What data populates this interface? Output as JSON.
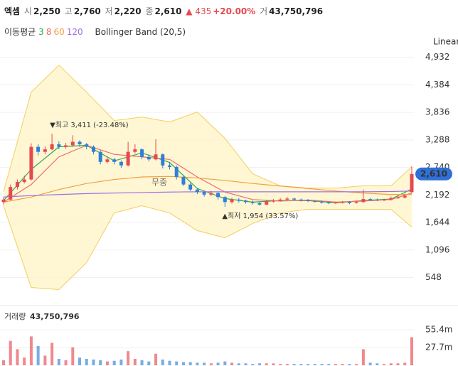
{
  "chart_data": {
    "type": "candlestick",
    "header": {
      "name": "엑셈",
      "open_label": "시",
      "open": "2,250",
      "high_label": "고",
      "high": "2,760",
      "low_label": "저",
      "low": "2,220",
      "close_label": "종",
      "close": "2,610",
      "change": "▲ 435",
      "change_pct": "+20.00%",
      "volume_label": "거",
      "volume": "43,750,796"
    },
    "ma_label": "이동평균",
    "bollinger_label": "Bollinger Band (20,5)",
    "scale_label": "Linear",
    "price_tag": "2,610",
    "watermark": "무중",
    "annotations": [
      "▼최고 3,411 (-23.48%)",
      "▲최저 1,954 (33.57%)"
    ],
    "up_color": "#e8484f",
    "down_color": "#2f7fd6",
    "open": [
      2050,
      2100,
      2350,
      2450,
      2500,
      3150,
      3050,
      3100,
      3200,
      3150,
      3180,
      3250,
      3200,
      3150,
      3050,
      2850,
      2900,
      2850,
      2780,
      3050,
      3100,
      2950,
      2900,
      3000,
      2780,
      2750,
      2550,
      2400,
      2300,
      2250,
      2200,
      2230,
      2150,
      2050,
      2100,
      2080,
      2050,
      2030,
      2000,
      2060,
      2080,
      2100,
      2120,
      2100,
      2090,
      2070,
      2060,
      2040,
      2030,
      2040,
      2050,
      2030,
      2050,
      2110,
      2100,
      2090,
      2100,
      2130,
      2140,
      2250
    ],
    "high": [
      2150,
      2400,
      2500,
      2580,
      3220,
      3200,
      3160,
      3411,
      3260,
      3230,
      3380,
      3280,
      3230,
      3180,
      3080,
      2960,
      2930,
      2880,
      3250,
      3200,
      3120,
      3000,
      3300,
      3020,
      2850,
      2780,
      2580,
      2430,
      2330,
      2280,
      2270,
      2260,
      2170,
      2140,
      2130,
      2100,
      2080,
      2050,
      2090,
      2110,
      2130,
      2150,
      2140,
      2120,
      2110,
      2090,
      2080,
      2060,
      2060,
      2070,
      2070,
      2080,
      2300,
      2130,
      2120,
      2120,
      2160,
      2170,
      2220,
      2760
    ],
    "low": [
      2000,
      2080,
      2300,
      2420,
      2480,
      2980,
      3000,
      3080,
      3100,
      3110,
      3150,
      3150,
      3100,
      3000,
      2800,
      2820,
      2800,
      2730,
      2760,
      3020,
      2900,
      2860,
      2880,
      2720,
      2700,
      2500,
      2370,
      2270,
      2210,
      2160,
      2170,
      2100,
      1954,
      2020,
      2040,
      2020,
      2000,
      1980,
      1990,
      2040,
      2060,
      2080,
      2070,
      2060,
      2050,
      2040,
      2020,
      2010,
      2010,
      2020,
      2010,
      2020,
      2040,
      2070,
      2070,
      2070,
      2080,
      2110,
      2120,
      2220
    ],
    "close": [
      2100,
      2350,
      2450,
      2500,
      3150,
      3050,
      3100,
      3200,
      3150,
      3180,
      3250,
      3200,
      3150,
      3050,
      2850,
      2900,
      2850,
      2780,
      3050,
      3100,
      2950,
      2900,
      3000,
      2780,
      2750,
      2550,
      2400,
      2300,
      2250,
      2200,
      2230,
      2150,
      2050,
      2100,
      2080,
      2050,
      2030,
      2000,
      2060,
      2080,
      2100,
      2120,
      2100,
      2090,
      2070,
      2060,
      2040,
      2030,
      2040,
      2050,
      2030,
      2050,
      2110,
      2100,
      2090,
      2100,
      2130,
      2140,
      2175,
      2610
    ],
    "ylim": [
      60,
      5380
    ],
    "yticks": [
      {
        "value": 4932,
        "label": "4,932"
      },
      {
        "value": 4384,
        "label": "4,384"
      },
      {
        "value": 3836,
        "label": "3,836"
      },
      {
        "value": 3288,
        "label": "3,288"
      },
      {
        "value": 2740,
        "label": "2,740"
      },
      {
        "value": 2192,
        "label": "2,192"
      },
      {
        "value": 1644,
        "label": "1,644"
      },
      {
        "value": 1096,
        "label": "1,096"
      },
      {
        "value": 548,
        "label": "548"
      }
    ],
    "grid": true,
    "lines": [
      {
        "name": "3",
        "color": "#2eaa4a",
        "x": [
          0,
          4,
          8,
          12,
          16,
          20,
          24,
          28,
          32,
          36,
          40,
          44,
          48,
          52,
          56,
          59
        ],
        "values": [
          2080,
          2700,
          3150,
          3180,
          2870,
          3030,
          2840,
          2320,
          2120,
          2050,
          2080,
          2080,
          2035,
          2080,
          2110,
          2310
        ]
      },
      {
        "name": "8",
        "color": "#f06a6a",
        "x": [
          0,
          4,
          8,
          12,
          16,
          20,
          24,
          28,
          32,
          36,
          40,
          44,
          48,
          52,
          56,
          59
        ],
        "values": [
          2050,
          2400,
          2950,
          3180,
          3000,
          2950,
          2900,
          2550,
          2250,
          2100,
          2070,
          2090,
          2050,
          2070,
          2100,
          2230
        ]
      },
      {
        "name": "60",
        "color": "#f0a040",
        "x": [
          0,
          4,
          8,
          12,
          16,
          20,
          24,
          28,
          32,
          36,
          40,
          44,
          48,
          52,
          56,
          59
        ],
        "values": [
          2050,
          2150,
          2300,
          2420,
          2500,
          2550,
          2560,
          2530,
          2480,
          2420,
          2370,
          2320,
          2270,
          2230,
          2200,
          2200
        ]
      },
      {
        "name": "120",
        "color": "#a070e0",
        "x": [
          0,
          4,
          8,
          12,
          16,
          20,
          24,
          28,
          32,
          36,
          40,
          44,
          48,
          52,
          56,
          59
        ],
        "values": [
          2150,
          2180,
          2200,
          2220,
          2230,
          2240,
          2250,
          2255,
          2255,
          2255,
          2255,
          2255,
          2255,
          2255,
          2260,
          2270
        ]
      }
    ],
    "bollinger": {
      "color": "#f2cf5b",
      "fill": "#fff4c9",
      "x": [
        0,
        4,
        8,
        12,
        16,
        20,
        24,
        28,
        32,
        36,
        40,
        44,
        48,
        52,
        56,
        59
      ],
      "upper": [
        2259,
        4239,
        4776,
        4239,
        3674,
        3744,
        3645,
        3843,
        3320,
        2613,
        2373,
        2330,
        2330,
        2373,
        2373,
        2754
      ],
      "lower": [
        1977,
        350,
        308,
        846,
        1835,
        1977,
        1835,
        1482,
        1340,
        1623,
        1835,
        1906,
        1906,
        1906,
        1906,
        1552
      ]
    },
    "volume_title": "거래량",
    "volume_total": "43,750,796",
    "volumes": [
      8000000,
      38000000,
      25000000,
      12000000,
      45000000,
      30000000,
      15000000,
      35000000,
      10000000,
      8000000,
      28000000,
      12000000,
      10000000,
      9000000,
      8000000,
      6000000,
      7000000,
      9000000,
      22000000,
      10000000,
      8000000,
      6000000,
      18000000,
      9000000,
      7000000,
      6000000,
      5000000,
      5000000,
      4000000,
      4000000,
      3000000,
      4000000,
      6000000,
      4000000,
      3000000,
      3000000,
      2000000,
      3000000,
      3000000,
      3000000,
      2000000,
      2000000,
      2000000,
      2000000,
      2000000,
      2000000,
      2000000,
      2000000,
      2000000,
      2000000,
      2000000,
      2000000,
      25000000,
      4000000,
      3000000,
      2000000,
      3000000,
      3000000,
      4000000,
      43750796
    ],
    "vlim": [
      0,
      89700000
    ],
    "vticks": [
      {
        "value": 55400000,
        "label": "55.4m"
      },
      {
        "value": 27700000,
        "label": "27.7m"
      }
    ]
  }
}
